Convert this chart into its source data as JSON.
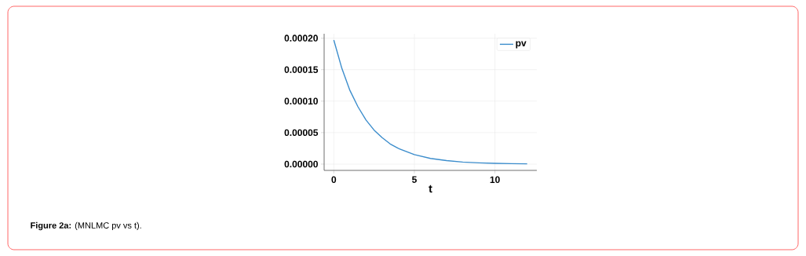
{
  "chart_data": {
    "type": "line",
    "xlabel": "t",
    "annotations": [
      "**Figure 2a:** (MNLMC pv vs t)."
    ],
    "x": [
      0,
      0.5,
      1,
      1.5,
      2,
      2.5,
      3,
      3.5,
      4,
      5,
      6,
      7,
      8,
      9,
      10,
      11,
      12
    ],
    "series": [
      {
        "name": "pv",
        "color": "#3c8dcc",
        "values": [
          0.000197,
          0.000152,
          0.000117,
          9.1e-05,
          7e-05,
          5.4e-05,
          4.2e-05,
          3.2e-05,
          2.5e-05,
          1.5e-05,
          9e-06,
          5.5e-06,
          3.3e-06,
          2e-06,
          1.2e-06,
          7e-07,
          4e-07
        ]
      }
    ],
    "xlim": [
      -0.6,
      12.6
    ],
    "ylim": [
      -1e-05,
      0.000207
    ],
    "xticks": [
      0,
      5,
      10
    ],
    "yticks": [
      {
        "value": 0,
        "label": "0.00000"
      },
      {
        "value": 5e-05,
        "label": "0.00005"
      },
      {
        "value": 0.0001,
        "label": "0.00010"
      },
      {
        "value": 0.00015,
        "label": "0.00015"
      },
      {
        "value": 0.0002,
        "label": "0.00020"
      }
    ],
    "grid": true,
    "legend": "top right",
    "marker": "none",
    "line_style": "solid"
  }
}
